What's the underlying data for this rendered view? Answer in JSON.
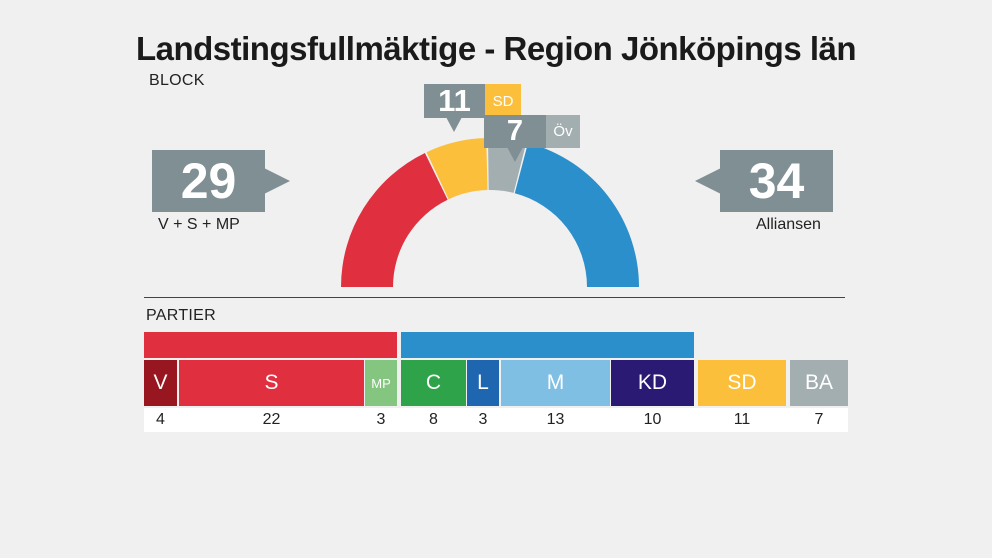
{
  "title": "Landstingsfullmäktige - Region Jönköpings län",
  "block_label": "BLOCK",
  "parties_label": "PARTIER",
  "blocks": {
    "left": {
      "value": "29",
      "caption": "V + S + MP"
    },
    "right": {
      "value": "34",
      "caption": "Alliansen"
    },
    "sd": {
      "value": "11",
      "tag": "SD"
    },
    "ov": {
      "value": "7",
      "tag": "Öv"
    }
  },
  "colors": {
    "callout": "#7f8f94",
    "left_block": "#e0303f",
    "right_block": "#2b8fcb",
    "sd": "#fbbf3b",
    "ov": "#a3aeb1"
  },
  "chart_data": {
    "type": "bar",
    "title": "Landstingsfullmäktige - Region Jönköpings län",
    "categories": [
      "V",
      "S",
      "MP",
      "C",
      "L",
      "M",
      "KD",
      "SD",
      "BA"
    ],
    "values": [
      4,
      22,
      3,
      8,
      3,
      13,
      10,
      11,
      7
    ],
    "colors": [
      "#98161f",
      "#e0303f",
      "#84c57f",
      "#2ea34a",
      "#1f66b0",
      "#7fbfe4",
      "#2a1a73",
      "#fbbf3b",
      "#a3aeb1"
    ],
    "semicircle": {
      "segments": [
        {
          "label": "V + S + MP",
          "value": 29,
          "color": "#e0303f"
        },
        {
          "label": "SD",
          "value": 11,
          "color": "#fbbf3b"
        },
        {
          "label": "Öv",
          "value": 7,
          "color": "#a3aeb1"
        },
        {
          "label": "Alliansen",
          "value": 34,
          "color": "#2b8fcb"
        }
      ]
    }
  }
}
